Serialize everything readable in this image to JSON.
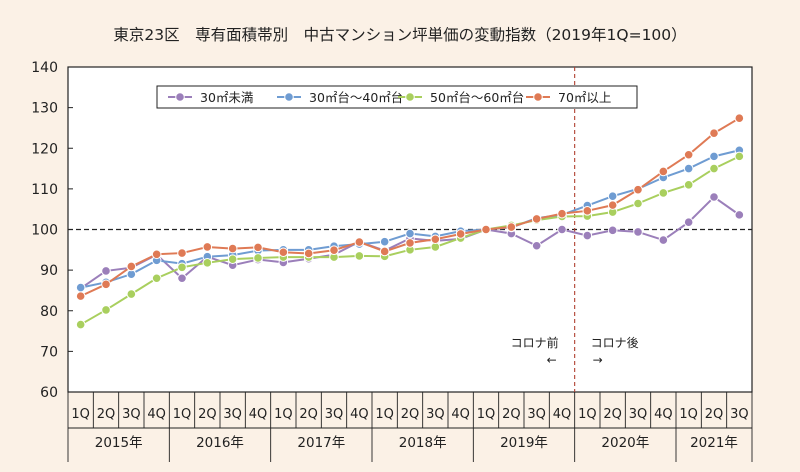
{
  "chart_data": {
    "type": "line",
    "title": "東京23区　専有面積帯別　中古マンション坪単価の変動指数（2019年1Q=100）",
    "ylim": [
      60,
      140
    ],
    "yticks": [
      60,
      70,
      80,
      90,
      100,
      110,
      120,
      130,
      140
    ],
    "reference_line": 100,
    "grid": false,
    "legend_position": "top",
    "x_quarters": [
      "1Q",
      "2Q",
      "3Q",
      "4Q",
      "1Q",
      "2Q",
      "3Q",
      "4Q",
      "1Q",
      "2Q",
      "3Q",
      "4Q",
      "1Q",
      "2Q",
      "3Q",
      "4Q",
      "1Q",
      "2Q",
      "3Q",
      "4Q",
      "1Q",
      "2Q",
      "3Q",
      "4Q",
      "1Q",
      "2Q",
      "3Q"
    ],
    "x_years": [
      {
        "label": "2015年",
        "quarters": 4
      },
      {
        "label": "2016年",
        "quarters": 4
      },
      {
        "label": "2017年",
        "quarters": 4
      },
      {
        "label": "2018年",
        "quarters": 4
      },
      {
        "label": "2019年",
        "quarters": 4
      },
      {
        "label": "2020年",
        "quarters": 4
      },
      {
        "label": "2021年",
        "quarters": 3
      }
    ],
    "annotations": {
      "divider_after_index": 19,
      "before_label": "コロナ前",
      "before_arrow": "←",
      "after_label": "コロナ後",
      "after_arrow": "→"
    },
    "series": [
      {
        "name": "30㎡未満",
        "color": "#9b7fba",
        "values": [
          85.5,
          89.8,
          90.6,
          93.8,
          88.0,
          93.3,
          91.2,
          92.6,
          91.9,
          92.8,
          93.8,
          97.0,
          94.8,
          97.8,
          97.2,
          97.7,
          100.0,
          99.0,
          96.0,
          100.0,
          98.5,
          99.8,
          99.4,
          97.4,
          101.8,
          108.0,
          103.6
        ]
      },
      {
        "name": "30㎡台～40㎡台",
        "color": "#6f9cd2",
        "values": [
          85.7,
          87.0,
          89.0,
          92.4,
          91.6,
          93.3,
          93.7,
          94.8,
          95.0,
          95.0,
          95.9,
          96.4,
          97.0,
          99.0,
          98.3,
          99.6,
          100.0,
          100.5,
          102.8,
          103.6,
          105.9,
          108.2,
          110.0,
          112.8,
          115.0,
          118.0,
          119.5
        ]
      },
      {
        "name": "50㎡台～60㎡台",
        "color": "#a9cf5e",
        "values": [
          76.6,
          80.2,
          84.1,
          88.0,
          90.7,
          91.8,
          92.7,
          93.0,
          93.2,
          93.2,
          93.2,
          93.5,
          93.4,
          95.0,
          95.7,
          97.9,
          100.0,
          101.0,
          102.3,
          103.2,
          103.3,
          104.3,
          106.4,
          109.0,
          111.0,
          115.0,
          118.0
        ]
      },
      {
        "name": "70㎡以上",
        "color": "#df7a55",
        "values": [
          83.6,
          86.5,
          90.9,
          93.9,
          94.2,
          95.7,
          95.3,
          95.6,
          94.4,
          94.1,
          94.9,
          96.9,
          94.6,
          96.7,
          97.6,
          98.9,
          100.0,
          100.6,
          102.6,
          103.9,
          104.6,
          106.0,
          109.8,
          114.3,
          118.4,
          123.7,
          127.4
        ]
      }
    ]
  }
}
